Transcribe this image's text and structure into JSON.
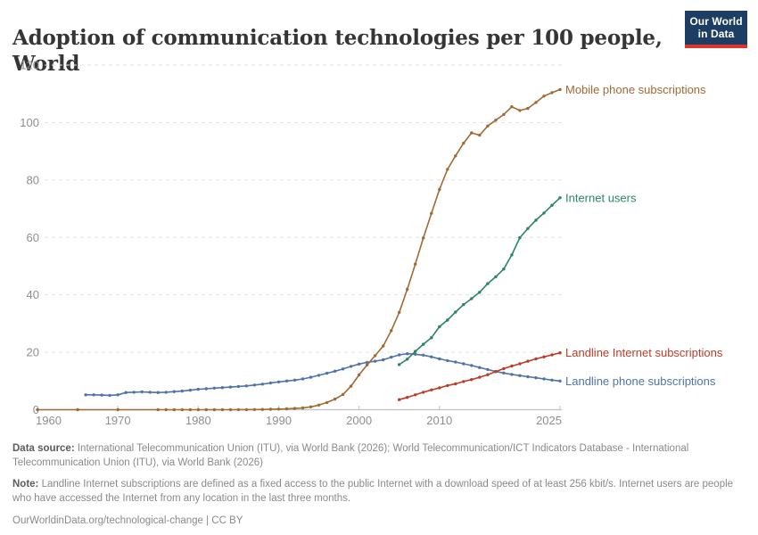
{
  "header": {
    "title": "Adoption of communication technologies per 100 people, World",
    "logo": {
      "line1": "Our World",
      "line2": "in Data",
      "bg_color": "#1d3d63",
      "accent_color": "#dc352c"
    }
  },
  "chart_data": {
    "type": "line",
    "title": "Adoption of communication technologies per 100 people, World",
    "xlabel": "",
    "ylabel": "",
    "xlim": [
      1960,
      2025
    ],
    "ylim": [
      0,
      120
    ],
    "yticks": [
      0,
      20,
      40,
      60,
      80,
      100,
      120
    ],
    "xticks": [
      1960,
      1970,
      1980,
      1990,
      2000,
      2010,
      2025
    ],
    "grid": "horizontal-dashed",
    "legend_position": "right-of-line-ends",
    "style": {
      "grid_color": "#e3e3e3",
      "axis_color": "#c0c0c0",
      "tick_label_color": "#8f8f8f",
      "marker": "dot"
    },
    "series": [
      {
        "name": "Mobile phone subscriptions",
        "color": "#A06A34",
        "x": [
          1960,
          1965,
          1970,
          1975,
          1976,
          1977,
          1978,
          1979,
          1980,
          1981,
          1982,
          1983,
          1984,
          1985,
          1986,
          1987,
          1988,
          1989,
          1990,
          1991,
          1992,
          1993,
          1994,
          1995,
          1996,
          1997,
          1998,
          1999,
          2000,
          2001,
          2002,
          2003,
          2004,
          2005,
          2006,
          2007,
          2008,
          2009,
          2010,
          2011,
          2012,
          2013,
          2014,
          2015,
          2016,
          2017,
          2018,
          2019,
          2020,
          2021,
          2022,
          2023,
          2024,
          2025
        ],
        "y": [
          0,
          0,
          0,
          0,
          0,
          0,
          0,
          0,
          0,
          0,
          0,
          0,
          0.01,
          0.02,
          0.04,
          0.06,
          0.1,
          0.15,
          0.21,
          0.3,
          0.42,
          0.61,
          0.99,
          1.6,
          2.5,
          3.7,
          5.3,
          8.2,
          12.1,
          15.6,
          18.8,
          22.2,
          27.5,
          33.9,
          41.9,
          50.7,
          59.8,
          68.4,
          76.7,
          83.7,
          88.4,
          92.8,
          96.4,
          95.6,
          98.8,
          100.8,
          102.8,
          105.5,
          104.2,
          104.9,
          107,
          109.2,
          110.4,
          111.5
        ]
      },
      {
        "name": "Internet users",
        "color": "#2C8465",
        "x": [
          2005,
          2006,
          2007,
          2008,
          2009,
          2010,
          2011,
          2012,
          2013,
          2014,
          2015,
          2016,
          2017,
          2018,
          2019,
          2020,
          2021,
          2022,
          2023,
          2024,
          2025
        ],
        "y": [
          15.7,
          17.6,
          20.3,
          22.8,
          25.1,
          28.9,
          31.2,
          34,
          36.6,
          38.7,
          40.9,
          43.9,
          46.3,
          49,
          53.9,
          59.9,
          63.1,
          66,
          68.5,
          71.2,
          73.8
        ]
      },
      {
        "name": "Landline Internet subscriptions",
        "color": "#BC3D26",
        "x": [
          2005,
          2006,
          2007,
          2008,
          2009,
          2010,
          2011,
          2012,
          2013,
          2014,
          2015,
          2016,
          2017,
          2018,
          2019,
          2020,
          2021,
          2022,
          2023,
          2024,
          2025
        ],
        "y": [
          3.5,
          4.3,
          5.2,
          6.1,
          6.9,
          7.6,
          8.4,
          9,
          9.8,
          10.5,
          11.3,
          12.2,
          13.3,
          14.3,
          15.2,
          16,
          16.9,
          17.7,
          18.4,
          19.1,
          19.8
        ]
      },
      {
        "name": "Landline phone subscriptions",
        "color": "#4F74A8",
        "x": [
          1966,
          1967,
          1968,
          1969,
          1970,
          1971,
          1972,
          1973,
          1974,
          1975,
          1976,
          1977,
          1978,
          1979,
          1980,
          1981,
          1982,
          1983,
          1984,
          1985,
          1986,
          1987,
          1988,
          1989,
          1990,
          1991,
          1992,
          1993,
          1994,
          1995,
          1996,
          1997,
          1998,
          1999,
          2000,
          2001,
          2002,
          2003,
          2004,
          2005,
          2006,
          2007,
          2008,
          2009,
          2010,
          2011,
          2012,
          2013,
          2014,
          2015,
          2016,
          2017,
          2018,
          2019,
          2020,
          2021,
          2022,
          2023,
          2024,
          2025
        ],
        "y": [
          5.2,
          5.2,
          5.1,
          5,
          5.2,
          6,
          6.1,
          6.2,
          6.1,
          6,
          6.1,
          6.3,
          6.5,
          6.8,
          7.1,
          7.3,
          7.5,
          7.7,
          7.9,
          8.1,
          8.3,
          8.6,
          8.9,
          9.3,
          9.7,
          10,
          10.3,
          10.7,
          11.3,
          12,
          12.7,
          13.4,
          14.2,
          15.1,
          15.9,
          16.5,
          16.9,
          17.4,
          18.3,
          19.1,
          19.5,
          19.3,
          19,
          18.4,
          17.7,
          17.1,
          16.6,
          16,
          15.4,
          14.7,
          14,
          13.3,
          12.8,
          12.3,
          11.9,
          11.5,
          11.1,
          10.7,
          10.3,
          10
        ]
      }
    ]
  },
  "footer": {
    "data_source_label": "Data source:",
    "data_source_text": " International Telecommunication Union (ITU), via World Bank (2026); World Telecommunication/ICT Indicators Database - International Telecommunication Union (ITU), via World Bank (2026)",
    "note_label": "Note:",
    "note_text": " Landline Internet subscriptions are defined as a fixed access to the public Internet with a download speed of at least 256 kbit/s. Internet users are people who have accessed the Internet from any location in the last three months.",
    "citation": "OurWorldinData.org/technological-change | CC BY"
  }
}
